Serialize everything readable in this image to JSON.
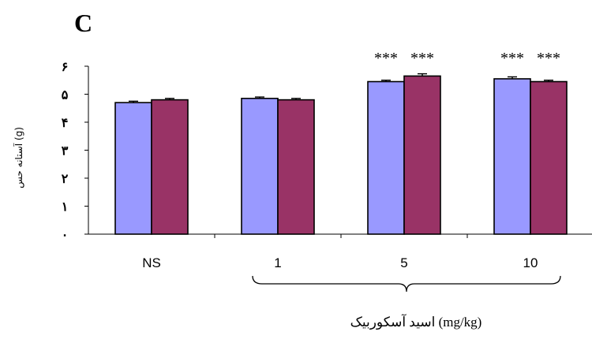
{
  "panel_label": "C",
  "chart_data": {
    "type": "bar",
    "categories": [
      "NS",
      "1",
      "5",
      "10"
    ],
    "series": [
      {
        "color": "#9999ff",
        "values": [
          4.7,
          4.85,
          5.45,
          5.55
        ]
      },
      {
        "color": "#993366",
        "values": [
          4.8,
          4.8,
          5.65,
          5.45
        ]
      }
    ],
    "errors": [
      [
        0.05,
        0.05,
        0.05,
        0.07
      ],
      [
        0.05,
        0.05,
        0.08,
        0.05
      ]
    ],
    "significance": [
      [
        "",
        ""
      ],
      [
        "",
        ""
      ],
      [
        "***",
        "***"
      ],
      [
        "***",
        "***"
      ]
    ],
    "ylim": [
      0,
      6
    ],
    "yticks": [
      "۰",
      "۱",
      "۲",
      "۳",
      "۴",
      "۵",
      "۶"
    ],
    "ylabel": "آستانه حس (g)",
    "xlabel": "اسید آسکوربیک (mg/kg)",
    "brace_over_categories": [
      "1",
      "5",
      "10"
    ]
  }
}
